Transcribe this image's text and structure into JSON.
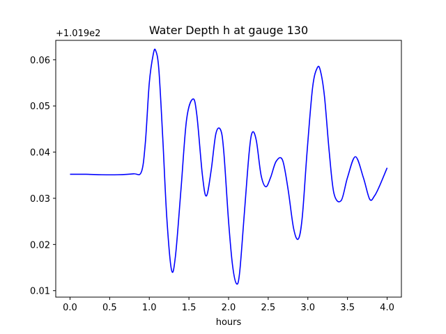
{
  "chart_data": {
    "type": "line",
    "title": "Water Depth h at gauge 130",
    "xlabel": "hours",
    "ylabel": "",
    "offset_label": "+1.019e2",
    "xlim": [
      -0.18,
      4.18
    ],
    "ylim": [
      0.0086,
      0.0642
    ],
    "x_ticks": [
      0.0,
      0.5,
      1.0,
      1.5,
      2.0,
      2.5,
      3.0,
      3.5,
      4.0
    ],
    "x_tick_labels": [
      "0.0",
      "0.5",
      "1.0",
      "1.5",
      "2.0",
      "2.5",
      "3.0",
      "3.5",
      "4.0"
    ],
    "y_ticks": [
      0.01,
      0.02,
      0.03,
      0.04,
      0.05,
      0.06
    ],
    "y_tick_labels": [
      "0.01",
      "0.02",
      "0.03",
      "0.04",
      "0.05",
      "0.06"
    ],
    "grid": false,
    "series": [
      {
        "color": "#0000ff",
        "x": [
          0.0,
          0.2,
          0.4,
          0.6,
          0.8,
          0.9,
          0.95,
          1.0,
          1.05,
          1.08,
          1.12,
          1.17,
          1.22,
          1.28,
          1.33,
          1.4,
          1.47,
          1.55,
          1.6,
          1.67,
          1.72,
          1.78,
          1.84,
          1.9,
          1.94,
          2.0,
          2.05,
          2.1,
          2.14,
          2.2,
          2.26,
          2.3,
          2.35,
          2.41,
          2.47,
          2.53,
          2.6,
          2.68,
          2.75,
          2.82,
          2.88,
          2.93,
          2.99,
          3.06,
          3.12,
          3.16,
          3.21,
          3.27,
          3.33,
          3.42,
          3.5,
          3.6,
          3.7,
          3.78,
          3.84,
          3.9,
          4.0
        ],
        "y": [
          0.0352,
          0.0352,
          0.0351,
          0.0351,
          0.0353,
          0.0357,
          0.042,
          0.055,
          0.0612,
          0.062,
          0.058,
          0.043,
          0.026,
          0.0145,
          0.0175,
          0.032,
          0.047,
          0.0515,
          0.048,
          0.035,
          0.0305,
          0.036,
          0.044,
          0.0448,
          0.04,
          0.025,
          0.0155,
          0.0115,
          0.014,
          0.027,
          0.04,
          0.0443,
          0.0425,
          0.035,
          0.0325,
          0.0345,
          0.038,
          0.0383,
          0.032,
          0.0235,
          0.0212,
          0.026,
          0.04,
          0.054,
          0.0583,
          0.0575,
          0.052,
          0.04,
          0.031,
          0.0295,
          0.0345,
          0.039,
          0.0345,
          0.0298,
          0.0305,
          0.0325,
          0.0366
        ]
      }
    ]
  }
}
